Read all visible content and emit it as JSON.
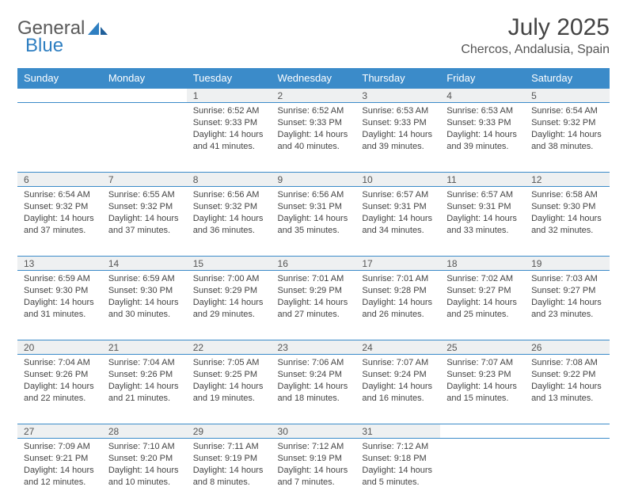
{
  "logo": {
    "word1": "General",
    "word2": "Blue"
  },
  "title": "July 2025",
  "location": "Chercos, Andalusia, Spain",
  "colors": {
    "header_bg": "#3b8bc9",
    "header_text": "#ffffff",
    "daynum_bg": "#eef0f1",
    "border": "#3b8bc9",
    "body_text": "#444444",
    "logo_gray": "#5a5a5a",
    "logo_blue": "#2f7fc1",
    "page_bg": "#ffffff"
  },
  "day_headers": [
    "Sunday",
    "Monday",
    "Tuesday",
    "Wednesday",
    "Thursday",
    "Friday",
    "Saturday"
  ],
  "weeks": [
    [
      {
        "empty": true
      },
      {
        "empty": true
      },
      {
        "n": "1",
        "sunrise": "Sunrise: 6:52 AM",
        "sunset": "Sunset: 9:33 PM",
        "day1": "Daylight: 14 hours",
        "day2": "and 41 minutes."
      },
      {
        "n": "2",
        "sunrise": "Sunrise: 6:52 AM",
        "sunset": "Sunset: 9:33 PM",
        "day1": "Daylight: 14 hours",
        "day2": "and 40 minutes."
      },
      {
        "n": "3",
        "sunrise": "Sunrise: 6:53 AM",
        "sunset": "Sunset: 9:33 PM",
        "day1": "Daylight: 14 hours",
        "day2": "and 39 minutes."
      },
      {
        "n": "4",
        "sunrise": "Sunrise: 6:53 AM",
        "sunset": "Sunset: 9:33 PM",
        "day1": "Daylight: 14 hours",
        "day2": "and 39 minutes."
      },
      {
        "n": "5",
        "sunrise": "Sunrise: 6:54 AM",
        "sunset": "Sunset: 9:32 PM",
        "day1": "Daylight: 14 hours",
        "day2": "and 38 minutes."
      }
    ],
    [
      {
        "n": "6",
        "sunrise": "Sunrise: 6:54 AM",
        "sunset": "Sunset: 9:32 PM",
        "day1": "Daylight: 14 hours",
        "day2": "and 37 minutes."
      },
      {
        "n": "7",
        "sunrise": "Sunrise: 6:55 AM",
        "sunset": "Sunset: 9:32 PM",
        "day1": "Daylight: 14 hours",
        "day2": "and 37 minutes."
      },
      {
        "n": "8",
        "sunrise": "Sunrise: 6:56 AM",
        "sunset": "Sunset: 9:32 PM",
        "day1": "Daylight: 14 hours",
        "day2": "and 36 minutes."
      },
      {
        "n": "9",
        "sunrise": "Sunrise: 6:56 AM",
        "sunset": "Sunset: 9:31 PM",
        "day1": "Daylight: 14 hours",
        "day2": "and 35 minutes."
      },
      {
        "n": "10",
        "sunrise": "Sunrise: 6:57 AM",
        "sunset": "Sunset: 9:31 PM",
        "day1": "Daylight: 14 hours",
        "day2": "and 34 minutes."
      },
      {
        "n": "11",
        "sunrise": "Sunrise: 6:57 AM",
        "sunset": "Sunset: 9:31 PM",
        "day1": "Daylight: 14 hours",
        "day2": "and 33 minutes."
      },
      {
        "n": "12",
        "sunrise": "Sunrise: 6:58 AM",
        "sunset": "Sunset: 9:30 PM",
        "day1": "Daylight: 14 hours",
        "day2": "and 32 minutes."
      }
    ],
    [
      {
        "n": "13",
        "sunrise": "Sunrise: 6:59 AM",
        "sunset": "Sunset: 9:30 PM",
        "day1": "Daylight: 14 hours",
        "day2": "and 31 minutes."
      },
      {
        "n": "14",
        "sunrise": "Sunrise: 6:59 AM",
        "sunset": "Sunset: 9:30 PM",
        "day1": "Daylight: 14 hours",
        "day2": "and 30 minutes."
      },
      {
        "n": "15",
        "sunrise": "Sunrise: 7:00 AM",
        "sunset": "Sunset: 9:29 PM",
        "day1": "Daylight: 14 hours",
        "day2": "and 29 minutes."
      },
      {
        "n": "16",
        "sunrise": "Sunrise: 7:01 AM",
        "sunset": "Sunset: 9:29 PM",
        "day1": "Daylight: 14 hours",
        "day2": "and 27 minutes."
      },
      {
        "n": "17",
        "sunrise": "Sunrise: 7:01 AM",
        "sunset": "Sunset: 9:28 PM",
        "day1": "Daylight: 14 hours",
        "day2": "and 26 minutes."
      },
      {
        "n": "18",
        "sunrise": "Sunrise: 7:02 AM",
        "sunset": "Sunset: 9:27 PM",
        "day1": "Daylight: 14 hours",
        "day2": "and 25 minutes."
      },
      {
        "n": "19",
        "sunrise": "Sunrise: 7:03 AM",
        "sunset": "Sunset: 9:27 PM",
        "day1": "Daylight: 14 hours",
        "day2": "and 23 minutes."
      }
    ],
    [
      {
        "n": "20",
        "sunrise": "Sunrise: 7:04 AM",
        "sunset": "Sunset: 9:26 PM",
        "day1": "Daylight: 14 hours",
        "day2": "and 22 minutes."
      },
      {
        "n": "21",
        "sunrise": "Sunrise: 7:04 AM",
        "sunset": "Sunset: 9:26 PM",
        "day1": "Daylight: 14 hours",
        "day2": "and 21 minutes."
      },
      {
        "n": "22",
        "sunrise": "Sunrise: 7:05 AM",
        "sunset": "Sunset: 9:25 PM",
        "day1": "Daylight: 14 hours",
        "day2": "and 19 minutes."
      },
      {
        "n": "23",
        "sunrise": "Sunrise: 7:06 AM",
        "sunset": "Sunset: 9:24 PM",
        "day1": "Daylight: 14 hours",
        "day2": "and 18 minutes."
      },
      {
        "n": "24",
        "sunrise": "Sunrise: 7:07 AM",
        "sunset": "Sunset: 9:24 PM",
        "day1": "Daylight: 14 hours",
        "day2": "and 16 minutes."
      },
      {
        "n": "25",
        "sunrise": "Sunrise: 7:07 AM",
        "sunset": "Sunset: 9:23 PM",
        "day1": "Daylight: 14 hours",
        "day2": "and 15 minutes."
      },
      {
        "n": "26",
        "sunrise": "Sunrise: 7:08 AM",
        "sunset": "Sunset: 9:22 PM",
        "day1": "Daylight: 14 hours",
        "day2": "and 13 minutes."
      }
    ],
    [
      {
        "n": "27",
        "sunrise": "Sunrise: 7:09 AM",
        "sunset": "Sunset: 9:21 PM",
        "day1": "Daylight: 14 hours",
        "day2": "and 12 minutes."
      },
      {
        "n": "28",
        "sunrise": "Sunrise: 7:10 AM",
        "sunset": "Sunset: 9:20 PM",
        "day1": "Daylight: 14 hours",
        "day2": "and 10 minutes."
      },
      {
        "n": "29",
        "sunrise": "Sunrise: 7:11 AM",
        "sunset": "Sunset: 9:19 PM",
        "day1": "Daylight: 14 hours",
        "day2": "and 8 minutes."
      },
      {
        "n": "30",
        "sunrise": "Sunrise: 7:12 AM",
        "sunset": "Sunset: 9:19 PM",
        "day1": "Daylight: 14 hours",
        "day2": "and 7 minutes."
      },
      {
        "n": "31",
        "sunrise": "Sunrise: 7:12 AM",
        "sunset": "Sunset: 9:18 PM",
        "day1": "Daylight: 14 hours",
        "day2": "and 5 minutes."
      },
      {
        "empty": true
      },
      {
        "empty": true
      }
    ]
  ]
}
